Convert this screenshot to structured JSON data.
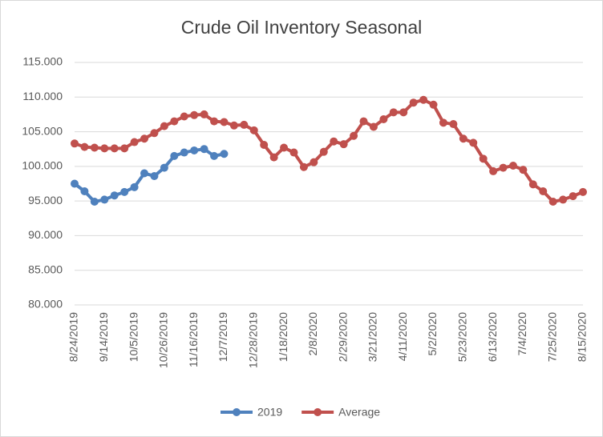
{
  "chart_data": {
    "type": "line",
    "title": "Crude Oil Inventory Seasonal",
    "categories": [
      "8/24/2019",
      null,
      null,
      "9/14/2019",
      null,
      null,
      "10/5/2019",
      null,
      null,
      "10/26/2019",
      null,
      null,
      "11/16/2019",
      null,
      null,
      "12/7/2019",
      null,
      null,
      "12/28/2019",
      null,
      null,
      "1/18/2020",
      null,
      null,
      "2/8/2020",
      null,
      null,
      "2/29/2020",
      null,
      null,
      "3/21/2020",
      null,
      null,
      "4/11/2020",
      null,
      null,
      "5/2/2020",
      null,
      null,
      "5/23/2020",
      null,
      null,
      "6/13/2020",
      null,
      null,
      "7/4/2020",
      null,
      null,
      "7/25/2020",
      null,
      null,
      "8/15/2020"
    ],
    "series": [
      {
        "name": "2019",
        "color": "#4f81bd",
        "values": [
          97.5,
          96.4,
          94.9,
          95.2,
          95.8,
          96.3,
          97.0,
          99.0,
          98.6,
          99.8,
          101.5,
          102.0,
          102.3,
          102.5,
          101.5,
          101.8,
          null,
          null,
          null,
          null,
          null,
          null,
          null,
          null,
          null,
          null,
          null,
          null,
          null,
          null,
          null,
          null,
          null,
          null,
          null,
          null,
          null,
          null,
          null,
          null,
          null,
          null,
          null,
          null,
          null,
          null,
          null,
          null,
          null,
          null,
          null,
          null
        ]
      },
      {
        "name": "Average",
        "color": "#c0504d",
        "values": [
          103.3,
          102.8,
          102.7,
          102.6,
          102.6,
          102.6,
          103.5,
          104.0,
          104.8,
          105.8,
          106.5,
          107.2,
          107.4,
          107.5,
          106.5,
          106.4,
          105.9,
          106.0,
          105.2,
          103.1,
          101.3,
          102.7,
          102.0,
          99.9,
          100.6,
          102.1,
          103.6,
          103.2,
          104.4,
          106.5,
          105.7,
          106.8,
          107.8,
          107.8,
          109.2,
          109.6,
          108.9,
          106.3,
          106.1,
          104.0,
          103.4,
          101.1,
          99.3,
          99.8,
          100.1,
          99.5,
          97.4,
          96.4,
          94.9,
          95.2,
          95.7,
          96.3
        ]
      }
    ],
    "ylim": [
      80,
      115
    ],
    "yticks": [
      {
        "value": 80,
        "label": "80.000"
      },
      {
        "value": 85,
        "label": "85.000"
      },
      {
        "value": 90,
        "label": "90.000"
      },
      {
        "value": 95,
        "label": "95.000"
      },
      {
        "value": 100,
        "label": "100.000"
      },
      {
        "value": 105,
        "label": "105.000"
      },
      {
        "value": 110,
        "label": "110.000"
      },
      {
        "value": 115,
        "label": "115.000"
      }
    ],
    "grid": true,
    "legend": "bottom"
  }
}
